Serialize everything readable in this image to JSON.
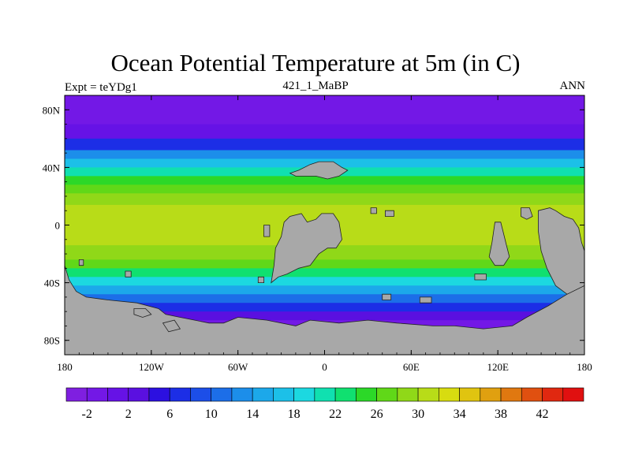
{
  "plot": {
    "title": "Ocean Potential Temperature at 5m (in C)",
    "left_label": "Expt = teYDg1",
    "center_label": "421_1_MaBP",
    "right_label": "ANN"
  },
  "colors": {
    "land": "#a8a8a8",
    "frame": "#000000"
  },
  "map_data": {
    "variable": "Ocean Potential Temperature",
    "depth_label": "5m",
    "units": "C",
    "lon_range": [
      -180,
      180
    ],
    "lat_range": [
      -90,
      90
    ],
    "x_ticks": [
      {
        "value": -180,
        "label": "180"
      },
      {
        "value": -120,
        "label": "120W"
      },
      {
        "value": -60,
        "label": "60W"
      },
      {
        "value": 0,
        "label": "0"
      },
      {
        "value": 60,
        "label": "60E"
      },
      {
        "value": 120,
        "label": "120E"
      },
      {
        "value": 180,
        "label": "180"
      }
    ],
    "y_ticks": [
      {
        "value": 80,
        "label": "80N"
      },
      {
        "value": 40,
        "label": "40N"
      },
      {
        "value": 0,
        "label": "0"
      },
      {
        "value": -40,
        "label": "40S"
      },
      {
        "value": -80,
        "label": "80S"
      }
    ],
    "zonal_bands": [
      {
        "lat_from": 90,
        "lat_to": 70,
        "temp": -2
      },
      {
        "lat_from": 70,
        "lat_to": 60,
        "temp": 0
      },
      {
        "lat_from": 60,
        "lat_to": 52,
        "temp": 6
      },
      {
        "lat_from": 52,
        "lat_to": 46,
        "temp": 12
      },
      {
        "lat_from": 46,
        "lat_to": 40,
        "temp": 17
      },
      {
        "lat_from": 40,
        "lat_to": 34,
        "temp": 21
      },
      {
        "lat_from": 34,
        "lat_to": 28,
        "temp": 24
      },
      {
        "lat_from": 28,
        "lat_to": 22,
        "temp": 27
      },
      {
        "lat_from": 22,
        "lat_to": 14,
        "temp": 29
      },
      {
        "lat_from": 14,
        "lat_to": -14,
        "temp": 31
      },
      {
        "lat_from": -14,
        "lat_to": -24,
        "temp": 29
      },
      {
        "lat_from": -24,
        "lat_to": -30,
        "temp": 26
      },
      {
        "lat_from": -30,
        "lat_to": -36,
        "temp": 22
      },
      {
        "lat_from": -36,
        "lat_to": -42,
        "temp": 18
      },
      {
        "lat_from": -42,
        "lat_to": -48,
        "temp": 14
      },
      {
        "lat_from": -48,
        "lat_to": -54,
        "temp": 10
      },
      {
        "lat_from": -54,
        "lat_to": -60,
        "temp": 6
      },
      {
        "lat_from": -60,
        "lat_to": -66,
        "temp": 2
      },
      {
        "lat_from": -66,
        "lat_to": -90,
        "temp": -2
      }
    ],
    "land_masses": [
      {
        "name": "antarctica",
        "points": [
          [
            -180,
            -28
          ],
          [
            -177,
            -38
          ],
          [
            -172,
            -46
          ],
          [
            -165,
            -50
          ],
          [
            -150,
            -52
          ],
          [
            -130,
            -54
          ],
          [
            -115,
            -58
          ],
          [
            -110,
            -62
          ],
          [
            -100,
            -64
          ],
          [
            -90,
            -66
          ],
          [
            -80,
            -68
          ],
          [
            -70,
            -68
          ],
          [
            -60,
            -64
          ],
          [
            -40,
            -66
          ],
          [
            -20,
            -70
          ],
          [
            -10,
            -66
          ],
          [
            10,
            -68
          ],
          [
            30,
            -66
          ],
          [
            50,
            -68
          ],
          [
            75,
            -70
          ],
          [
            90,
            -70
          ],
          [
            110,
            -72
          ],
          [
            130,
            -70
          ],
          [
            140,
            -64
          ],
          [
            155,
            -56
          ],
          [
            168,
            -48
          ],
          [
            180,
            -42
          ],
          [
            180,
            -90
          ],
          [
            -180,
            -90
          ]
        ]
      },
      {
        "name": "south-america-block",
        "points": [
          [
            -37,
            -40
          ],
          [
            -35,
            -28
          ],
          [
            -34,
            -16
          ],
          [
            -30,
            -8
          ],
          [
            -28,
            2
          ],
          [
            -24,
            6
          ],
          [
            -16,
            8
          ],
          [
            -12,
            2
          ],
          [
            -6,
            4
          ],
          [
            -2,
            8
          ],
          [
            6,
            8
          ],
          [
            10,
            2
          ],
          [
            12,
            -10
          ],
          [
            8,
            -16
          ],
          [
            2,
            -16
          ],
          [
            -4,
            -20
          ],
          [
            -10,
            -28
          ],
          [
            -18,
            -30
          ],
          [
            -26,
            -34
          ],
          [
            -32,
            -36
          ]
        ]
      },
      {
        "name": "north-atlantic-island",
        "points": [
          [
            -24,
            36
          ],
          [
            -18,
            38
          ],
          [
            -10,
            42
          ],
          [
            -4,
            44
          ],
          [
            6,
            44
          ],
          [
            12,
            40
          ],
          [
            16,
            38
          ],
          [
            10,
            34
          ],
          [
            2,
            32
          ],
          [
            -6,
            34
          ],
          [
            -14,
            34
          ],
          [
            -20,
            34
          ]
        ]
      },
      {
        "name": "australia",
        "points": [
          [
            148,
            10
          ],
          [
            156,
            12
          ],
          [
            160,
            10
          ],
          [
            166,
            6
          ],
          [
            172,
            4
          ],
          [
            176,
            -2
          ],
          [
            178,
            -12
          ],
          [
            180,
            -18
          ],
          [
            180,
            -42
          ],
          [
            168,
            -48
          ],
          [
            160,
            -42
          ],
          [
            154,
            -30
          ],
          [
            150,
            -18
          ],
          [
            148,
            -4
          ]
        ]
      },
      {
        "name": "eastern-island",
        "points": [
          [
            118,
            2
          ],
          [
            122,
            2
          ],
          [
            124,
            -6
          ],
          [
            126,
            -14
          ],
          [
            128,
            -22
          ],
          [
            124,
            -28
          ],
          [
            118,
            -28
          ],
          [
            114,
            -22
          ],
          [
            116,
            -12
          ]
        ]
      },
      {
        "name": "small-island-a",
        "points": [
          [
            -42,
            0
          ],
          [
            -38,
            0
          ],
          [
            -38,
            -8
          ],
          [
            -42,
            -8
          ]
        ]
      },
      {
        "name": "small-island-b",
        "points": [
          [
            32,
            12
          ],
          [
            36,
            12
          ],
          [
            36,
            8
          ],
          [
            32,
            8
          ]
        ]
      },
      {
        "name": "small-island-c",
        "points": [
          [
            42,
            10
          ],
          [
            48,
            10
          ],
          [
            48,
            6
          ],
          [
            42,
            6
          ]
        ]
      },
      {
        "name": "small-island-d",
        "points": [
          [
            -138,
            -32
          ],
          [
            -134,
            -32
          ],
          [
            -134,
            -36
          ],
          [
            -138,
            -36
          ]
        ]
      },
      {
        "name": "small-island-e",
        "points": [
          [
            -170,
            -24
          ],
          [
            -167,
            -24
          ],
          [
            -167,
            -28
          ],
          [
            -170,
            -28
          ]
        ]
      },
      {
        "name": "small-island-f",
        "points": [
          [
            -46,
            -36
          ],
          [
            -42,
            -36
          ],
          [
            -42,
            -40
          ],
          [
            -46,
            -40
          ]
        ]
      },
      {
        "name": "small-island-g",
        "points": [
          [
            104,
            -34
          ],
          [
            112,
            -34
          ],
          [
            112,
            -38
          ],
          [
            104,
            -38
          ]
        ]
      },
      {
        "name": "small-island-h",
        "points": [
          [
            136,
            12
          ],
          [
            142,
            12
          ],
          [
            144,
            6
          ],
          [
            140,
            4
          ],
          [
            136,
            6
          ]
        ]
      },
      {
        "name": "small-island-i",
        "points": [
          [
            40,
            -48
          ],
          [
            46,
            -48
          ],
          [
            46,
            -52
          ],
          [
            40,
            -52
          ]
        ]
      },
      {
        "name": "small-island-j",
        "points": [
          [
            66,
            -50
          ],
          [
            74,
            -50
          ],
          [
            74,
            -54
          ],
          [
            66,
            -54
          ]
        ]
      },
      {
        "name": "sub-antarctic-island-a",
        "points": [
          [
            -132,
            -58
          ],
          [
            -124,
            -58
          ],
          [
            -120,
            -62
          ],
          [
            -126,
            -64
          ],
          [
            -132,
            -62
          ]
        ]
      },
      {
        "name": "sub-antarctic-island-b",
        "points": [
          [
            -112,
            -68
          ],
          [
            -104,
            -66
          ],
          [
            -100,
            -72
          ],
          [
            -108,
            -74
          ]
        ]
      }
    ],
    "colorbar": {
      "levels": [
        -4,
        -2,
        0,
        2,
        4,
        6,
        8,
        10,
        12,
        14,
        16,
        18,
        20,
        22,
        24,
        26,
        28,
        30,
        32,
        34,
        36,
        38,
        40,
        42,
        44
      ],
      "colors": [
        "#7f1fe0",
        "#7318e6",
        "#6612e6",
        "#5a10e0",
        "#2c10e0",
        "#1c2ee6",
        "#1c4ee8",
        "#1c6ee8",
        "#1c8eea",
        "#1ca8ea",
        "#1cc0e8",
        "#1cd8e0",
        "#10e0b0",
        "#10e070",
        "#2cd828",
        "#60d818",
        "#90d818",
        "#b8dc18",
        "#d8dc10",
        "#e0c410",
        "#e0a010",
        "#e07810",
        "#e05010",
        "#e02810",
        "#e01010"
      ],
      "label_every": 2,
      "label_start_index": 1,
      "tick_labels": [
        "-2",
        "2",
        "6",
        "10",
        "14",
        "18",
        "22",
        "26",
        "30",
        "34",
        "38",
        "42"
      ]
    }
  }
}
